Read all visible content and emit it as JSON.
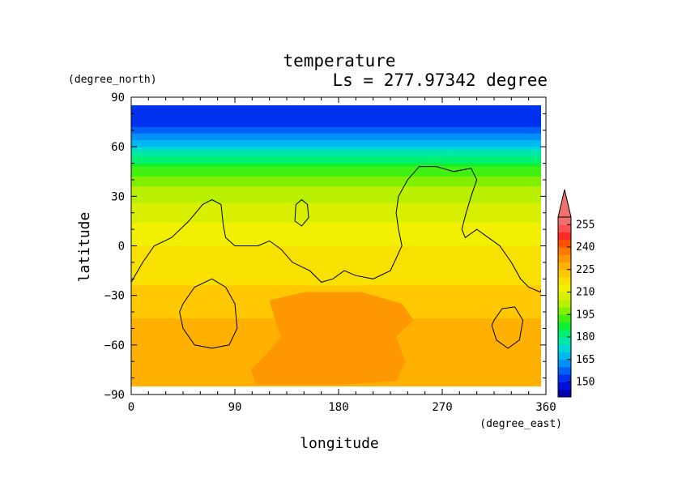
{
  "chart_data": {
    "type": "heatmap",
    "title": "temperature",
    "subtitle": "Ls = 277.97342 degree",
    "xlabel": "longitude",
    "ylabel": "latitude",
    "x_unit": "(degree_east)",
    "y_unit": "(degree_north)",
    "xlim": [
      0,
      360
    ],
    "ylim": [
      -90,
      90
    ],
    "x_ticks": [
      0,
      90,
      180,
      270,
      360
    ],
    "y_ticks": [
      -90,
      -60,
      -30,
      0,
      30,
      60,
      90
    ],
    "colorbar": {
      "levels": [
        140,
        145,
        150,
        155,
        160,
        165,
        170,
        175,
        180,
        185,
        190,
        195,
        200,
        205,
        210,
        215,
        220,
        225,
        230,
        235,
        240,
        245,
        250,
        255,
        260
      ],
      "labels": [
        150,
        165,
        180,
        195,
        210,
        225,
        240,
        255
      ],
      "colors": [
        "#0000b0",
        "#0010d8",
        "#0030f0",
        "#0060f8",
        "#0090f8",
        "#00b8f0",
        "#00d8d8",
        "#00e8a8",
        "#00f070",
        "#10f030",
        "#40f010",
        "#80f000",
        "#b8f000",
        "#d8f000",
        "#f0f000",
        "#f8e000",
        "#ffc800",
        "#ffb000",
        "#ff9800",
        "#ff7800",
        "#ff5000",
        "#ff2828",
        "#ff5050",
        "#f07070"
      ],
      "extend": "max"
    },
    "profile_lat": [
      90,
      85,
      75,
      70,
      65,
      62,
      59,
      56,
      53,
      50,
      47,
      44,
      41,
      38,
      35,
      32,
      28,
      24,
      20,
      14,
      8,
      2,
      -4,
      -10,
      -16,
      -22,
      -30,
      -45,
      -60,
      -75,
      -85,
      -90
    ],
    "profile_temp": [
      150,
      150,
      152,
      157,
      162,
      167,
      172,
      177,
      182,
      186,
      190,
      193,
      196,
      198,
      200,
      202,
      204,
      206,
      208,
      210,
      212,
      214,
      216,
      217,
      218,
      219,
      222,
      225,
      225,
      225,
      225,
      225
    ],
    "warm_region_temp": 230,
    "contour": {
      "main": [
        [
          0,
          -22
        ],
        [
          10,
          -10
        ],
        [
          20,
          0
        ],
        [
          35,
          5
        ],
        [
          50,
          15
        ],
        [
          62,
          25
        ],
        [
          70,
          28
        ],
        [
          78,
          25
        ],
        [
          80,
          12
        ],
        [
          82,
          5
        ],
        [
          90,
          0
        ],
        [
          100,
          0
        ],
        [
          110,
          0
        ],
        [
          120,
          3
        ],
        [
          130,
          -2
        ],
        [
          140,
          -10
        ],
        [
          155,
          -15
        ],
        [
          165,
          -22
        ],
        [
          175,
          -20
        ],
        [
          185,
          -15
        ],
        [
          195,
          -18
        ],
        [
          210,
          -20
        ],
        [
          225,
          -15
        ],
        [
          235,
          0
        ],
        [
          232,
          10
        ],
        [
          230,
          20
        ],
        [
          232,
          30
        ],
        [
          240,
          40
        ],
        [
          250,
          48
        ],
        [
          265,
          48
        ],
        [
          280,
          45
        ],
        [
          295,
          47
        ],
        [
          300,
          40
        ],
        [
          295,
          30
        ],
        [
          290,
          18
        ],
        [
          287,
          10
        ],
        [
          290,
          5
        ],
        [
          300,
          10
        ],
        [
          310,
          5
        ],
        [
          320,
          0
        ],
        [
          330,
          -10
        ],
        [
          338,
          -20
        ],
        [
          345,
          -25
        ],
        [
          355,
          -28
        ],
        [
          360,
          -20
        ]
      ],
      "ring_sw": [
        [
          45,
          -35
        ],
        [
          55,
          -25
        ],
        [
          70,
          -20
        ],
        [
          82,
          -25
        ],
        [
          90,
          -35
        ],
        [
          92,
          -50
        ],
        [
          85,
          -60
        ],
        [
          70,
          -62
        ],
        [
          55,
          -60
        ],
        [
          45,
          -50
        ],
        [
          42,
          -40
        ],
        [
          45,
          -35
        ]
      ],
      "ring_se": [
        [
          315,
          -45
        ],
        [
          322,
          -38
        ],
        [
          333,
          -37
        ],
        [
          340,
          -45
        ],
        [
          337,
          -57
        ],
        [
          327,
          -62
        ],
        [
          317,
          -57
        ],
        [
          313,
          -48
        ],
        [
          315,
          -45
        ]
      ],
      "blob_n": [
        [
          142,
          15
        ],
        [
          143,
          25
        ],
        [
          148,
          28
        ],
        [
          153,
          25
        ],
        [
          154,
          17
        ],
        [
          148,
          12
        ],
        [
          142,
          15
        ]
      ]
    }
  }
}
